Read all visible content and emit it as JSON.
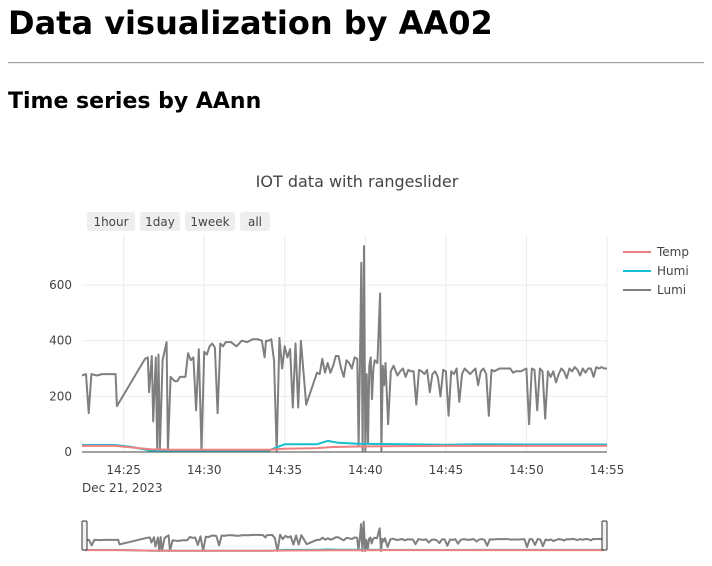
{
  "page": {
    "title": "Data visualization by AA02",
    "section_title": "Time series by AAnn"
  },
  "chart_data": {
    "type": "line",
    "title": "IOT data with rangeslider",
    "x_start_label": "Dec 21, 2023",
    "x": {
      "type": "time",
      "range": [
        "14:22:25",
        "14:55"
      ],
      "ticks": [
        "14:25",
        "14:30",
        "14:35",
        "14:40",
        "14:45",
        "14:50",
        "14:55"
      ]
    },
    "y": {
      "range": [
        0,
        780
      ],
      "ticks": [
        0,
        200,
        400,
        600
      ]
    },
    "grid": true,
    "legend_position": "top-right",
    "range_selector": [
      "1hour",
      "1day",
      "1week",
      "all"
    ],
    "range_slider": true,
    "series": [
      {
        "name": "Temp",
        "color": "#f08080",
        "points": [
          [
            "14:22:25",
            22
          ],
          [
            "14:24:30",
            22
          ],
          [
            "14:26:40",
            10
          ],
          [
            "14:28:00",
            8
          ],
          [
            "14:30:00",
            8
          ],
          [
            "14:32:00",
            8
          ],
          [
            "14:34:00",
            8
          ],
          [
            "14:35:00",
            12
          ],
          [
            "14:37:00",
            14
          ],
          [
            "14:38:00",
            18
          ],
          [
            "14:40:00",
            20
          ],
          [
            "14:45:00",
            22
          ],
          [
            "14:50:00",
            22
          ],
          [
            "14:55:00",
            22
          ]
        ]
      },
      {
        "name": "Humi",
        "color": "#17becf",
        "points": [
          [
            "14:22:25",
            25
          ],
          [
            "14:24:30",
            25
          ],
          [
            "14:25:30",
            18
          ],
          [
            "14:26:40",
            5
          ],
          [
            "14:30:00",
            5
          ],
          [
            "14:32:00",
            5
          ],
          [
            "14:34:00",
            5
          ],
          [
            "14:35:00",
            28
          ],
          [
            "14:37:00",
            28
          ],
          [
            "14:37:40",
            40
          ],
          [
            "14:38:20",
            33
          ],
          [
            "14:39:30",
            30
          ],
          [
            "14:45:00",
            26
          ],
          [
            "14:47:00",
            28
          ],
          [
            "14:50:00",
            27
          ],
          [
            "14:55:00",
            27
          ]
        ]
      },
      {
        "name": "Lumi",
        "color": "#7f7f7f",
        "points": [
          [
            "14:22:25",
            275
          ],
          [
            "14:22:40",
            280
          ],
          [
            "14:22:50",
            140
          ],
          [
            "14:23:00",
            280
          ],
          [
            "14:23:20",
            275
          ],
          [
            "14:23:40",
            280
          ],
          [
            "14:24:00",
            280
          ],
          [
            "14:24:15",
            280
          ],
          [
            "14:24:30",
            280
          ],
          [
            "14:24:35",
            165
          ],
          [
            "14:26:20",
            335
          ],
          [
            "14:26:30",
            340
          ],
          [
            "14:26:35",
            215
          ],
          [
            "14:26:45",
            345
          ],
          [
            "14:26:50",
            110
          ],
          [
            "14:27:00",
            340
          ],
          [
            "14:27:05",
            0
          ],
          [
            "14:27:10",
            350
          ],
          [
            "14:27:15",
            10
          ],
          [
            "14:27:25",
            330
          ],
          [
            "14:27:40",
            395
          ],
          [
            "14:27:45",
            5
          ],
          [
            "14:27:55",
            270
          ],
          [
            "14:28:10",
            255
          ],
          [
            "14:28:20",
            255
          ],
          [
            "14:28:30",
            270
          ],
          [
            "14:28:50",
            270
          ],
          [
            "14:29:00",
            355
          ],
          [
            "14:29:10",
            330
          ],
          [
            "14:29:20",
            340
          ],
          [
            "14:29:30",
            150
          ],
          [
            "14:29:40",
            370
          ],
          [
            "14:29:50",
            5
          ],
          [
            "14:30:00",
            360
          ],
          [
            "14:30:10",
            350
          ],
          [
            "14:30:20",
            380
          ],
          [
            "14:30:30",
            390
          ],
          [
            "14:30:40",
            375
          ],
          [
            "14:30:50",
            140
          ],
          [
            "14:31:00",
            390
          ],
          [
            "14:31:10",
            380
          ],
          [
            "14:31:20",
            395
          ],
          [
            "14:31:40",
            395
          ],
          [
            "14:32:00",
            380
          ],
          [
            "14:32:20",
            400
          ],
          [
            "14:32:40",
            395
          ],
          [
            "14:33:00",
            405
          ],
          [
            "14:33:20",
            405
          ],
          [
            "14:33:35",
            400
          ],
          [
            "14:33:45",
            340
          ],
          [
            "14:33:50",
            400
          ],
          [
            "14:34:00",
            400
          ],
          [
            "14:34:10",
            405
          ],
          [
            "14:34:20",
            330
          ],
          [
            "14:34:30",
            0
          ],
          [
            "14:34:40",
            410
          ],
          [
            "14:34:50",
            300
          ],
          [
            "14:35:00",
            380
          ],
          [
            "14:35:10",
            340
          ],
          [
            "14:35:20",
            370
          ],
          [
            "14:35:30",
            160
          ],
          [
            "14:35:40",
            390
          ],
          [
            "14:35:50",
            160
          ],
          [
            "14:36:00",
            400
          ],
          [
            "14:36:20",
            170
          ],
          [
            "14:37:00",
            285
          ],
          [
            "14:37:10",
            280
          ],
          [
            "14:37:20",
            335
          ],
          [
            "14:37:30",
            285
          ],
          [
            "14:37:40",
            320
          ],
          [
            "14:37:50",
            285
          ],
          [
            "14:38:00",
            310
          ],
          [
            "14:38:10",
            345
          ],
          [
            "14:38:20",
            345
          ],
          [
            "14:38:30",
            300
          ],
          [
            "14:38:40",
            270
          ],
          [
            "14:38:50",
            330
          ],
          [
            "14:39:00",
            320
          ],
          [
            "14:39:10",
            300
          ],
          [
            "14:39:20",
            340
          ],
          [
            "14:39:30",
            335
          ],
          [
            "14:39:35",
            20
          ],
          [
            "14:39:40",
            310
          ],
          [
            "14:39:45",
            680
          ],
          [
            "14:39:50",
            0
          ],
          [
            "14:39:55",
            740
          ],
          [
            "14:40:00",
            0
          ],
          [
            "14:40:05",
            280
          ],
          [
            "14:40:10",
            30
          ],
          [
            "14:40:15",
            310
          ],
          [
            "14:40:20",
            340
          ],
          [
            "14:40:25",
            190
          ],
          [
            "14:40:30",
            300
          ],
          [
            "14:40:35",
            330
          ],
          [
            "14:40:45",
            320
          ],
          [
            "14:40:55",
            570
          ],
          [
            "14:41:00",
            0
          ],
          [
            "14:41:05",
            310
          ],
          [
            "14:41:10",
            240
          ],
          [
            "14:41:15",
            320
          ],
          [
            "14:41:25",
            100
          ],
          [
            "14:41:35",
            290
          ],
          [
            "14:41:45",
            310
          ],
          [
            "14:42:00",
            275
          ],
          [
            "14:42:10",
            290
          ],
          [
            "14:42:20",
            300
          ],
          [
            "14:42:30",
            270
          ],
          [
            "14:42:40",
            295
          ],
          [
            "14:42:50",
            290
          ],
          [
            "14:43:00",
            290
          ],
          [
            "14:43:10",
            170
          ],
          [
            "14:43:20",
            295
          ],
          [
            "14:43:30",
            290
          ],
          [
            "14:43:40",
            280
          ],
          [
            "14:43:50",
            295
          ],
          [
            "14:44:00",
            215
          ],
          [
            "14:44:10",
            280
          ],
          [
            "14:44:20",
            290
          ],
          [
            "14:44:30",
            270
          ],
          [
            "14:44:40",
            200
          ],
          [
            "14:44:50",
            295
          ],
          [
            "14:45:00",
            290
          ],
          [
            "14:45:10",
            130
          ],
          [
            "14:45:20",
            290
          ],
          [
            "14:45:30",
            280
          ],
          [
            "14:45:40",
            300
          ],
          [
            "14:45:50",
            180
          ],
          [
            "14:46:00",
            280
          ],
          [
            "14:46:10",
            300
          ],
          [
            "14:46:20",
            290
          ],
          [
            "14:46:30",
            280
          ],
          [
            "14:46:40",
            290
          ],
          [
            "14:46:50",
            300
          ],
          [
            "14:47:00",
            240
          ],
          [
            "14:47:10",
            290
          ],
          [
            "14:47:20",
            300
          ],
          [
            "14:47:30",
            280
          ],
          [
            "14:47:40",
            130
          ],
          [
            "14:47:50",
            295
          ],
          [
            "14:48:00",
            290
          ],
          [
            "14:48:20",
            300
          ],
          [
            "14:48:40",
            300
          ],
          [
            "14:49:00",
            300
          ],
          [
            "14:49:10",
            285
          ],
          [
            "14:49:20",
            290
          ],
          [
            "14:49:40",
            290
          ],
          [
            "14:50:00",
            300
          ],
          [
            "14:50:10",
            100
          ],
          [
            "14:50:20",
            300
          ],
          [
            "14:50:30",
            295
          ],
          [
            "14:50:40",
            150
          ],
          [
            "14:50:50",
            300
          ],
          [
            "14:51:00",
            290
          ],
          [
            "14:51:10",
            120
          ],
          [
            "14:51:20",
            290
          ],
          [
            "14:51:30",
            270
          ],
          [
            "14:51:40",
            290
          ],
          [
            "14:51:50",
            250
          ],
          [
            "14:52:00",
            280
          ],
          [
            "14:52:10",
            300
          ],
          [
            "14:52:20",
            290
          ],
          [
            "14:52:30",
            265
          ],
          [
            "14:52:40",
            300
          ],
          [
            "14:52:50",
            290
          ],
          [
            "14:53:00",
            305
          ],
          [
            "14:53:10",
            295
          ],
          [
            "14:53:20",
            275
          ],
          [
            "14:53:30",
            300
          ],
          [
            "14:53:40",
            285
          ],
          [
            "14:53:50",
            300
          ],
          [
            "14:54:00",
            300
          ],
          [
            "14:54:10",
            270
          ],
          [
            "14:54:20",
            305
          ],
          [
            "14:54:30",
            300
          ],
          [
            "14:54:40",
            305
          ],
          [
            "14:54:50",
            300
          ],
          [
            "14:55:00",
            300
          ]
        ]
      }
    ]
  }
}
